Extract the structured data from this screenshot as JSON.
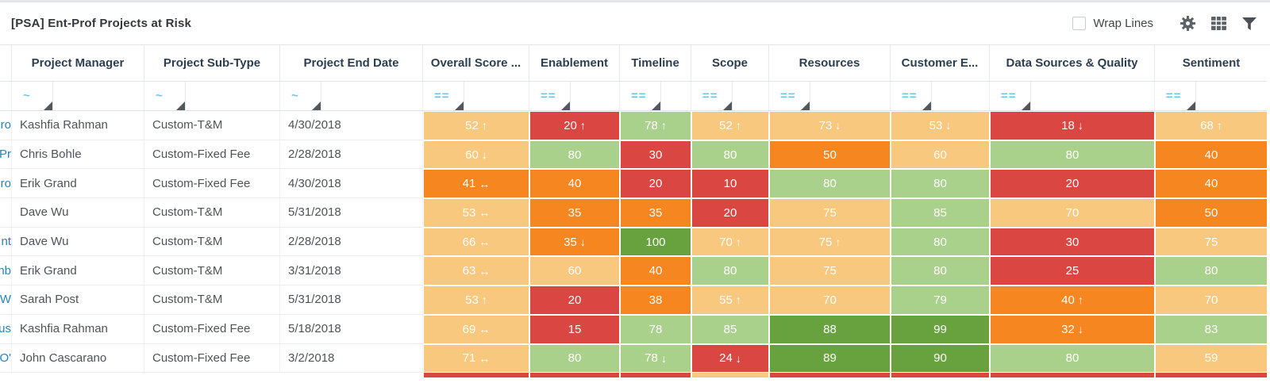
{
  "toolbar": {
    "title": "[PSA] Ent-Prof Projects at Risk",
    "wrap_lines_label": "Wrap Lines",
    "wrap_lines_checked": false
  },
  "colors": {
    "tan": "#f9c87f",
    "orange": "#f6861f",
    "red": "#da4642",
    "green": "#aad18b",
    "dark_green": "#68a23e",
    "link_blue": "#2583b8",
    "operator_blue": "#6fc3ea"
  },
  "table": {
    "columns": [
      {
        "label": "",
        "filter": ""
      },
      {
        "label": "Project Manager",
        "filter": "~"
      },
      {
        "label": "Project Sub-Type",
        "filter": "~"
      },
      {
        "label": "Project End Date",
        "filter": "~"
      },
      {
        "label": "Overall Score ...",
        "filter": "=="
      },
      {
        "label": "Enablement",
        "filter": "=="
      },
      {
        "label": "Timeline",
        "filter": "=="
      },
      {
        "label": "Scope",
        "filter": "=="
      },
      {
        "label": "Resources",
        "filter": "=="
      },
      {
        "label": "Customer E...",
        "filter": "=="
      },
      {
        "label": "Data Sources & Quality",
        "filter": "=="
      },
      {
        "label": "Sentiment",
        "filter": "=="
      }
    ],
    "rows": [
      {
        "link": "Pro",
        "manager": "Kashfia Rahman",
        "subtype": "Custom-T&M",
        "end_date": "4/30/2018",
        "scores": [
          {
            "v": 52,
            "a": "↑",
            "c": "tan"
          },
          {
            "v": 20,
            "a": "↑",
            "c": "red"
          },
          {
            "v": 78,
            "a": "↑",
            "c": "green"
          },
          {
            "v": 52,
            "a": "↑",
            "c": "tan"
          },
          {
            "v": 73,
            "a": "↓",
            "c": "tan"
          },
          {
            "v": 53,
            "a": "↓",
            "c": "tan"
          },
          {
            "v": 18,
            "a": "↓",
            "c": "red"
          },
          {
            "v": 68,
            "a": "↑",
            "c": "tan"
          }
        ]
      },
      {
        "link": "Pr",
        "manager": "Chris Bohle",
        "subtype": "Custom-Fixed Fee",
        "end_date": "2/28/2018",
        "scores": [
          {
            "v": 60,
            "a": "↓",
            "c": "tan"
          },
          {
            "v": 80,
            "a": "",
            "c": "green"
          },
          {
            "v": 30,
            "a": "",
            "c": "red"
          },
          {
            "v": 80,
            "a": "",
            "c": "green"
          },
          {
            "v": 50,
            "a": "",
            "c": "orange"
          },
          {
            "v": 60,
            "a": "",
            "c": "tan"
          },
          {
            "v": 80,
            "a": "",
            "c": "green"
          },
          {
            "v": 40,
            "a": "",
            "c": "orange"
          }
        ]
      },
      {
        "link": "Pro",
        "manager": "Erik Grand",
        "subtype": "Custom-Fixed Fee",
        "end_date": "4/30/2018",
        "scores": [
          {
            "v": 41,
            "a": "↔",
            "c": "orange"
          },
          {
            "v": 40,
            "a": "",
            "c": "orange"
          },
          {
            "v": 20,
            "a": "",
            "c": "red"
          },
          {
            "v": 10,
            "a": "",
            "c": "red"
          },
          {
            "v": 80,
            "a": "",
            "c": "green"
          },
          {
            "v": 80,
            "a": "",
            "c": "green"
          },
          {
            "v": 20,
            "a": "",
            "c": "red"
          },
          {
            "v": 40,
            "a": "",
            "c": "orange"
          }
        ]
      },
      {
        "link": "",
        "manager": "Dave Wu",
        "subtype": "Custom-T&M",
        "end_date": "5/31/2018",
        "scores": [
          {
            "v": 53,
            "a": "↔",
            "c": "tan"
          },
          {
            "v": 35,
            "a": "",
            "c": "orange"
          },
          {
            "v": 35,
            "a": "",
            "c": "orange"
          },
          {
            "v": 20,
            "a": "",
            "c": "red"
          },
          {
            "v": 75,
            "a": "",
            "c": "tan"
          },
          {
            "v": 85,
            "a": "",
            "c": "green"
          },
          {
            "v": 70,
            "a": "",
            "c": "tan"
          },
          {
            "v": 50,
            "a": "",
            "c": "orange"
          }
        ]
      },
      {
        "link": "nt",
        "manager": "Dave Wu",
        "subtype": "Custom-T&M",
        "end_date": "2/28/2018",
        "scores": [
          {
            "v": 66,
            "a": "↔",
            "c": "tan"
          },
          {
            "v": 35,
            "a": "↓",
            "c": "orange"
          },
          {
            "v": 100,
            "a": "",
            "c": "dark_green"
          },
          {
            "v": 70,
            "a": "↑",
            "c": "tan"
          },
          {
            "v": 75,
            "a": "↑",
            "c": "tan"
          },
          {
            "v": 80,
            "a": "",
            "c": "green"
          },
          {
            "v": 30,
            "a": "",
            "c": "red"
          },
          {
            "v": 75,
            "a": "",
            "c": "tan"
          }
        ]
      },
      {
        "link": "nb",
        "manager": "Erik Grand",
        "subtype": "Custom-T&M",
        "end_date": "3/31/2018",
        "scores": [
          {
            "v": 63,
            "a": "↔",
            "c": "tan"
          },
          {
            "v": 60,
            "a": "",
            "c": "tan"
          },
          {
            "v": 40,
            "a": "",
            "c": "orange"
          },
          {
            "v": 80,
            "a": "",
            "c": "green"
          },
          {
            "v": 75,
            "a": "",
            "c": "tan"
          },
          {
            "v": 80,
            "a": "",
            "c": "green"
          },
          {
            "v": 25,
            "a": "",
            "c": "red"
          },
          {
            "v": 80,
            "a": "",
            "c": "green"
          }
        ]
      },
      {
        "link": "W",
        "manager": "Sarah Post",
        "subtype": "Custom-T&M",
        "end_date": "5/31/2018",
        "scores": [
          {
            "v": 53,
            "a": "↑",
            "c": "tan"
          },
          {
            "v": 20,
            "a": "",
            "c": "red"
          },
          {
            "v": 38,
            "a": "",
            "c": "orange"
          },
          {
            "v": 55,
            "a": "↑",
            "c": "tan"
          },
          {
            "v": 70,
            "a": "",
            "c": "tan"
          },
          {
            "v": 79,
            "a": "",
            "c": "green"
          },
          {
            "v": 40,
            "a": "↑",
            "c": "orange"
          },
          {
            "v": 70,
            "a": "",
            "c": "tan"
          }
        ]
      },
      {
        "link": "us",
        "manager": "Kashfia Rahman",
        "subtype": "Custom-Fixed Fee",
        "end_date": "5/18/2018",
        "scores": [
          {
            "v": 69,
            "a": "↔",
            "c": "tan"
          },
          {
            "v": 15,
            "a": "",
            "c": "red"
          },
          {
            "v": 78,
            "a": "",
            "c": "green"
          },
          {
            "v": 85,
            "a": "",
            "c": "green"
          },
          {
            "v": 88,
            "a": "",
            "c": "dark_green"
          },
          {
            "v": 99,
            "a": "",
            "c": "dark_green"
          },
          {
            "v": 32,
            "a": "↓",
            "c": "orange"
          },
          {
            "v": 83,
            "a": "",
            "c": "green"
          }
        ]
      },
      {
        "link": "O'",
        "manager": "John Cascarano",
        "subtype": "Custom-Fixed Fee",
        "end_date": "3/2/2018",
        "scores": [
          {
            "v": 71,
            "a": "↔",
            "c": "tan"
          },
          {
            "v": 80,
            "a": "",
            "c": "green"
          },
          {
            "v": 78,
            "a": "↓",
            "c": "green"
          },
          {
            "v": 24,
            "a": "↓",
            "c": "red"
          },
          {
            "v": 89,
            "a": "",
            "c": "dark_green"
          },
          {
            "v": 90,
            "a": "",
            "c": "dark_green"
          },
          {
            "v": 80,
            "a": "",
            "c": "green"
          },
          {
            "v": 59,
            "a": "",
            "c": "tan"
          }
        ]
      }
    ],
    "partial_row_colors": [
      "red",
      "red",
      "red",
      "tan",
      "red",
      "red",
      "red",
      "red"
    ]
  }
}
